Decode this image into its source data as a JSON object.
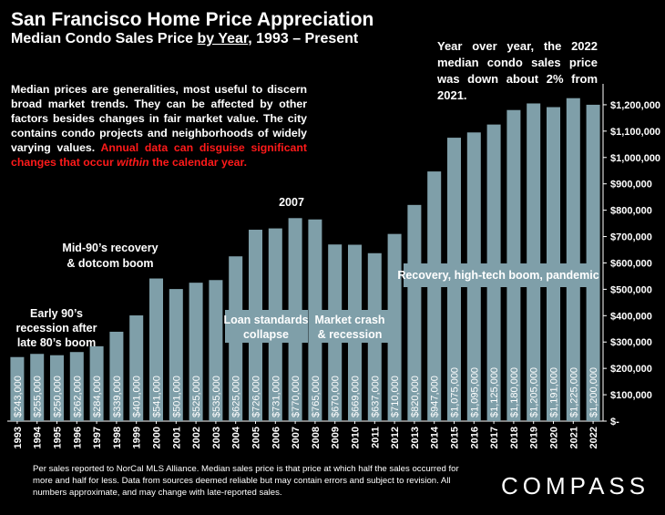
{
  "header": {
    "title": "San Francisco Home Price Appreciation",
    "subtitle_pre": "Median Condo Sales Price ",
    "subtitle_u": "by Year",
    "subtitle_post": ", 1993 – Present"
  },
  "yoy_note": "Year over year, the 2022 median condo sales price was down about 2% from 2021.",
  "intro": {
    "text": "Median prices are generalities, most useful to discern broad market trends. They can be affected by other factors besides changes in fair market value. The city contains condo projects and neighborhoods of widely varying values. ",
    "red_pre": "Annual data can disguise significant changes that occur ",
    "red_em": "within",
    "red_post": " the calendar year."
  },
  "annotations": {
    "early90s": [
      "Early 90’s",
      "recession after",
      "late 80’s boom"
    ],
    "mid90s": [
      "Mid-90’s recovery",
      "& dotcom boom"
    ],
    "y2007": "2007",
    "loan": [
      "Loan standards",
      "collapse"
    ],
    "crash": [
      "Market crash",
      "& recession"
    ],
    "recovery": "Recovery, high-tech boom, pandemic"
  },
  "footer": "Per sales reported to NorCal MLS Alliance. Median sales price is that price at which half the sales occurred for more and half for less. Data from sources deemed reliable but may contain errors and subject to revision. All numbers approximate, and may change with late-reported sales.",
  "logo": "COMPASS",
  "colors": {
    "bar": "#7f9fa9",
    "background": "#000000",
    "red_text": "#ff1a1a"
  },
  "chart_data": {
    "type": "bar",
    "categories": [
      "1993",
      "1994",
      "1995",
      "1996",
      "1997",
      "1998",
      "1999",
      "2000",
      "2001",
      "2002",
      "2003",
      "2004",
      "2005",
      "2006",
      "2007",
      "2008",
      "2009",
      "2010",
      "2011",
      "2012",
      "2013",
      "2014",
      "2015",
      "2016",
      "2017",
      "2018",
      "2019",
      "2020",
      "2021",
      "2022"
    ],
    "values": [
      243000,
      255000,
      250000,
      262000,
      284000,
      339000,
      401000,
      541000,
      501000,
      525000,
      535000,
      625000,
      726000,
      731000,
      770000,
      765000,
      670000,
      669000,
      637000,
      710000,
      820000,
      947000,
      1075000,
      1095000,
      1125000,
      1180000,
      1205000,
      1191000,
      1225000,
      1200000
    ],
    "data_labels": [
      "$243,000",
      "$255,000",
      "$250,000",
      "$262,000",
      "$284,000",
      "$339,000",
      "$401,000",
      "$541,000",
      "$501,000",
      "$525,000",
      "$535,000",
      "$625,000",
      "$726,000",
      "$731,000",
      "$770,000",
      "$765,000",
      "$670,000",
      "$669,000",
      "$637,000",
      "$710,000",
      "$820,000",
      "$947,000",
      "$1,075,000",
      "$1,095,000",
      "$1,125,000",
      "$1,180,000",
      "$1,205,000",
      "$1,191,000",
      "$1,225,000",
      "$1,200,000"
    ],
    "ylim": [
      0,
      1300000
    ],
    "yticks": [
      0,
      100000,
      200000,
      300000,
      400000,
      500000,
      600000,
      700000,
      800000,
      900000,
      1000000,
      1100000,
      1200000
    ],
    "ytick_labels": [
      "$-",
      "$100,000",
      "$200,000",
      "$300,000",
      "$400,000",
      "$500,000",
      "$600,000",
      "$700,000",
      "$800,000",
      "$900,000",
      "$1,000,000",
      "$1,100,000",
      "$1,200,000"
    ],
    "y_axis_position": "right",
    "grid": false
  }
}
